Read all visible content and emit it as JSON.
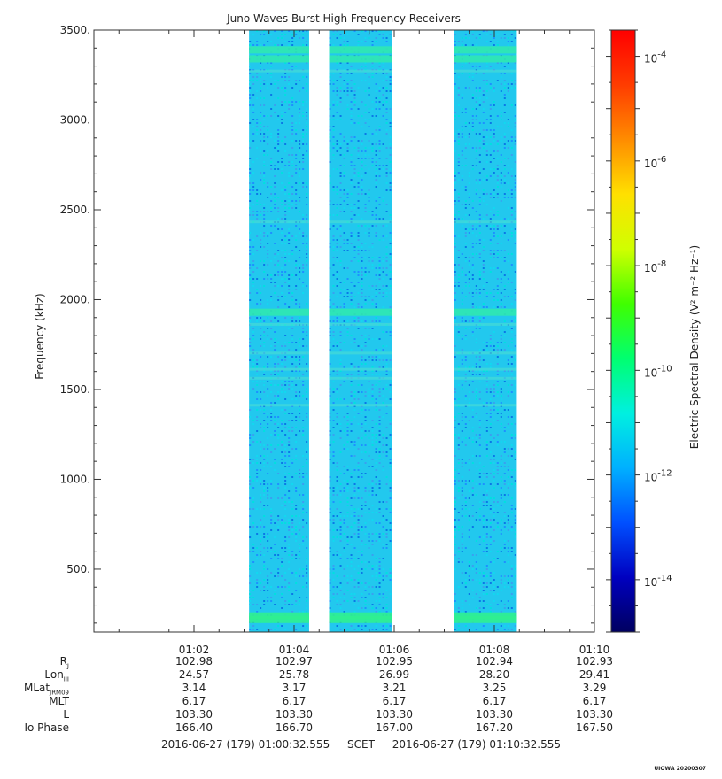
{
  "chart_data": {
    "type": "heatmap",
    "title": "Juno Waves Burst High Frequency Receivers",
    "ylabel": "Frequency (kHz)",
    "ylim": [
      150,
      3500
    ],
    "y_ticks": [
      "500.",
      "1000.",
      "1500.",
      "2000.",
      "2500.",
      "3000.",
      "3500."
    ],
    "y_tick_values": [
      500,
      1000,
      1500,
      2000,
      2500,
      3000,
      3500
    ],
    "x_start": "01:00:32.555",
    "x_end": "01:10:32.555",
    "x_ticks": [
      "01:02",
      "01:04",
      "01:06",
      "01:08",
      "01:10"
    ],
    "x_tick_minutes": [
      2,
      4,
      6,
      8,
      10
    ],
    "data_blocks_minutes": [
      [
        3.1,
        4.3
      ],
      [
        4.7,
        5.95
      ],
      [
        7.2,
        8.45
      ]
    ],
    "emission_bands_khz": [
      3390,
      3340,
      3270,
      2430,
      1930,
      1860,
      1700,
      1610,
      1560,
      1410,
      240,
      220
    ],
    "colorbar": {
      "label": "Electric Spectral Density (V² m⁻² Hz⁻¹)",
      "scale": "log",
      "range_exp": [
        -15,
        -3.5
      ],
      "tick_exps": [
        -14,
        -12,
        -10,
        -8,
        -6,
        -4
      ],
      "colors": [
        "#000060",
        "#0000c0",
        "#0050ff",
        "#00b0ff",
        "#00f0e0",
        "#00ff70",
        "#40ff00",
        "#d0ff00",
        "#ffe000",
        "#ff8c00",
        "#ff3c00",
        "#ff0000"
      ],
      "background_level_exp": -12.3
    }
  },
  "ephemeris": {
    "rows": [
      {
        "label": "R",
        "sub": "J",
        "values": [
          "102.98",
          "102.97",
          "102.95",
          "102.94",
          "102.93"
        ]
      },
      {
        "label": "Lon",
        "sub": "III",
        "values": [
          "24.57",
          "25.78",
          "26.99",
          "28.20",
          "29.41"
        ]
      },
      {
        "label": "MLat",
        "sub": "JRM09",
        "values": [
          "3.14",
          "3.17",
          "3.21",
          "3.25",
          "3.29"
        ]
      },
      {
        "label": "MLT",
        "sub": "",
        "values": [
          "6.17",
          "6.17",
          "6.17",
          "6.17",
          "6.17"
        ]
      },
      {
        "label": "L",
        "sub": "",
        "values": [
          "103.30",
          "103.30",
          "103.30",
          "103.30",
          "103.30"
        ]
      },
      {
        "label": "Io Phase",
        "sub": "",
        "values": [
          "166.40",
          "166.70",
          "167.00",
          "167.20",
          "167.50"
        ]
      }
    ]
  },
  "scet": {
    "start": "2016-06-27 (179) 01:00:32.555",
    "label": "SCET",
    "end": "2016-06-27 (179) 01:10:32.555"
  },
  "footer": "UIOWA 20200307"
}
